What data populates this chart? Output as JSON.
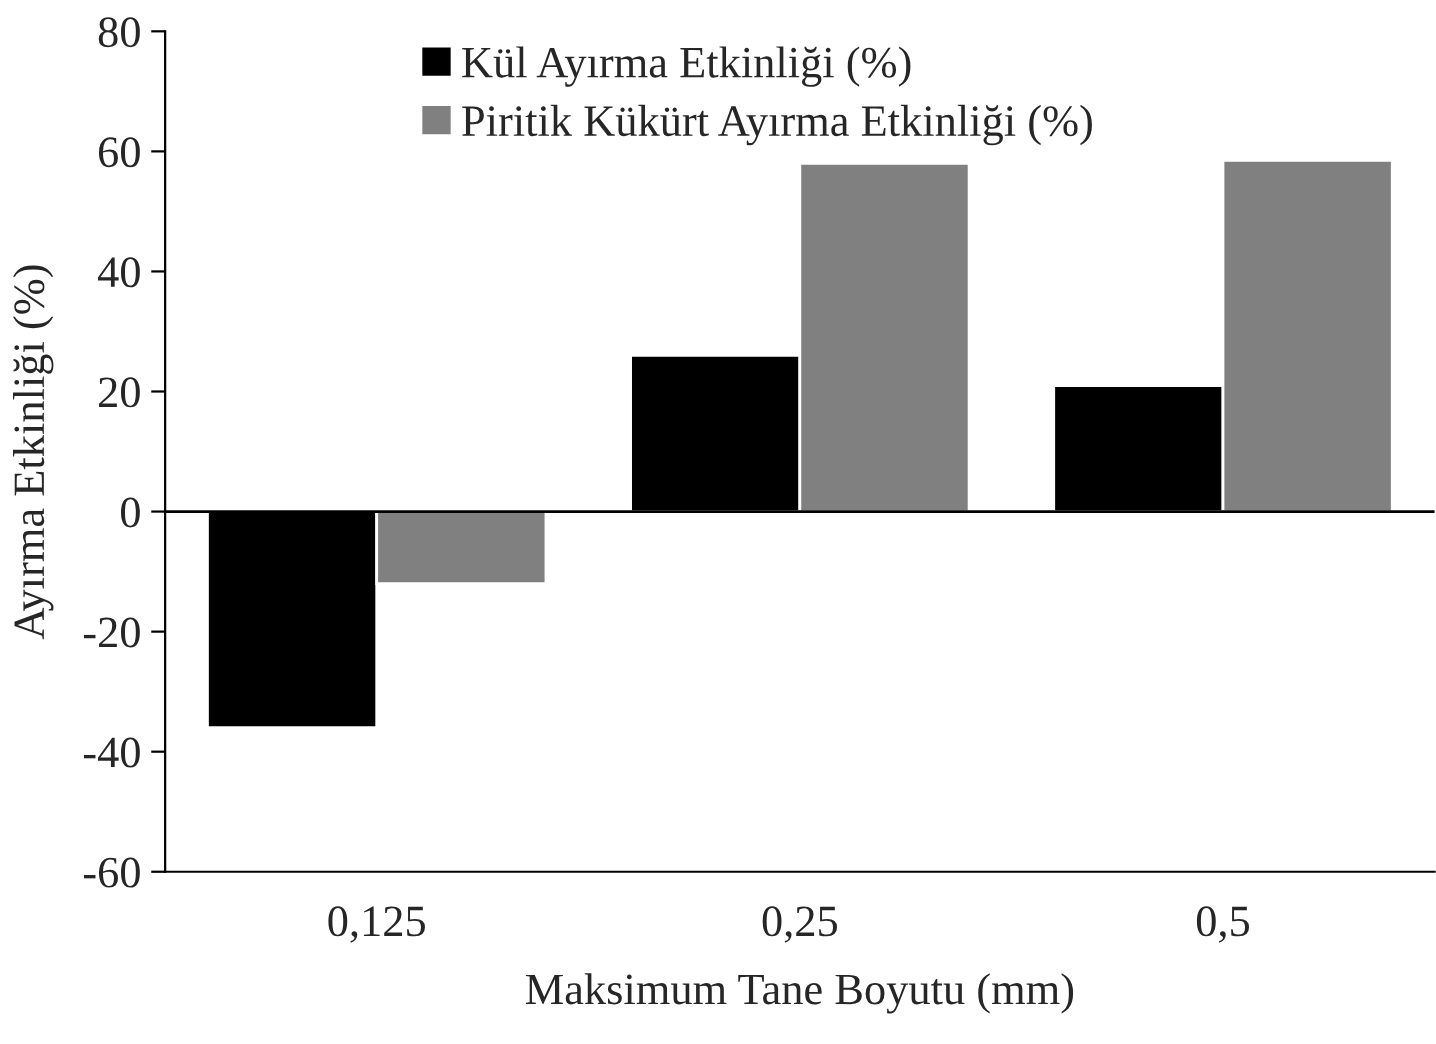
{
  "chart_data": {
    "type": "bar",
    "xlabel": "Maksimum Tane Boyutu (mm)",
    "ylabel": "Ayırma Etkinliği (%)",
    "categories": [
      "0,125",
      "0,25",
      "0,5"
    ],
    "series": [
      {
        "name": "Kül Ayırma Etkinliği (%)",
        "color": "#000000",
        "values": [
          -36,
          26,
          21
        ]
      },
      {
        "name": "Piritik Kükürt Ayırma Etkinliği (%)",
        "color": "#808080",
        "values": [
          -12,
          58,
          58.5
        ]
      }
    ],
    "ylim": [
      -60,
      80
    ],
    "yticks": [
      {
        "value": -60,
        "label": "-60"
      },
      {
        "value": -40,
        "label": "-40"
      },
      {
        "value": -20,
        "label": "-20"
      },
      0,
      20,
      40,
      60,
      80
    ],
    "ref_lines": [
      {
        "axis": "y",
        "value": 0,
        "color": "#000000"
      }
    ],
    "grid": false,
    "legend": "top left"
  }
}
